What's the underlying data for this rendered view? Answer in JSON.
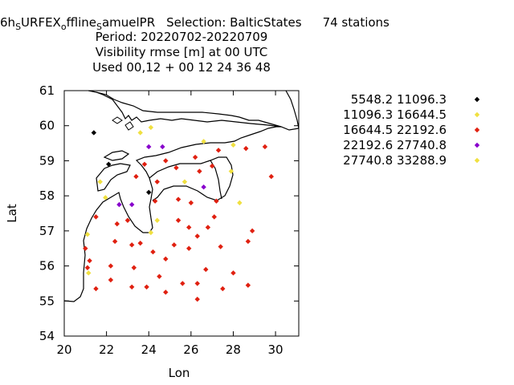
{
  "title": {
    "line1": {
      "prefix": "6h",
      "sub1": "S",
      "mid1": "URFEX",
      "sub2": "o",
      "mid2": "ffline",
      "sub3": "S",
      "mid3": "amuelPR",
      "selection": "Selection: BalticStates",
      "stations": "74 stations"
    },
    "line2": "Period: 20220702-20220709",
    "line3": "Visibility rmse [m] at  00 UTC",
    "line4": "Used  00,12  + 00 12 24 36 48"
  },
  "chart_data": {
    "type": "scatter",
    "xlabel": "Lon",
    "ylabel": "Lat",
    "xlim": [
      20,
      31.1
    ],
    "ylim": [
      54,
      61
    ],
    "xticks": [
      20,
      22,
      24,
      26,
      28,
      30
    ],
    "yticks": [
      54,
      55,
      56,
      57,
      58,
      59,
      60,
      61
    ],
    "legend_position": "right",
    "series": [
      {
        "name": "5548.2 11096.3",
        "color": "#000000",
        "points": [
          [
            21.4,
            59.8
          ],
          [
            22.1,
            58.9
          ],
          [
            24.0,
            58.1
          ]
        ]
      },
      {
        "name": "11096.3 16644.5",
        "color": "#f0e040",
        "points": [
          [
            23.6,
            59.8
          ],
          [
            24.1,
            59.95
          ],
          [
            26.6,
            59.55
          ],
          [
            28.0,
            59.45
          ],
          [
            21.7,
            58.4
          ],
          [
            21.95,
            57.95
          ],
          [
            25.7,
            58.4
          ],
          [
            27.9,
            58.7
          ],
          [
            24.4,
            57.3
          ],
          [
            28.3,
            57.8
          ],
          [
            21.1,
            56.9
          ],
          [
            24.1,
            56.95
          ],
          [
            21.15,
            55.8
          ]
        ]
      },
      {
        "name": "16644.5 22192.6",
        "color": "#e02010",
        "points": [
          [
            27.3,
            59.3
          ],
          [
            28.6,
            59.35
          ],
          [
            29.5,
            59.4
          ],
          [
            23.8,
            58.9
          ],
          [
            24.4,
            58.4
          ],
          [
            25.3,
            58.8
          ],
          [
            24.8,
            59.0
          ],
          [
            26.2,
            59.1
          ],
          [
            26.4,
            58.7
          ],
          [
            27.0,
            58.85
          ],
          [
            29.8,
            58.55
          ],
          [
            23.4,
            58.55
          ],
          [
            25.4,
            57.9
          ],
          [
            26.0,
            57.8
          ],
          [
            27.2,
            57.85
          ],
          [
            27.1,
            57.4
          ],
          [
            21.5,
            57.4
          ],
          [
            22.5,
            57.2
          ],
          [
            23.0,
            57.3
          ],
          [
            24.3,
            57.85
          ],
          [
            25.4,
            57.3
          ],
          [
            25.9,
            57.1
          ],
          [
            26.3,
            56.85
          ],
          [
            26.8,
            57.1
          ],
          [
            28.9,
            57.0
          ],
          [
            28.7,
            56.7
          ],
          [
            22.4,
            56.7
          ],
          [
            23.2,
            56.6
          ],
          [
            23.6,
            56.65
          ],
          [
            24.2,
            56.4
          ],
          [
            25.2,
            56.6
          ],
          [
            25.9,
            56.5
          ],
          [
            27.4,
            56.55
          ],
          [
            21.0,
            56.5
          ],
          [
            21.2,
            56.15
          ],
          [
            22.2,
            56.0
          ],
          [
            23.3,
            55.95
          ],
          [
            24.8,
            56.2
          ],
          [
            21.1,
            55.95
          ],
          [
            21.5,
            55.35
          ],
          [
            22.2,
            55.6
          ],
          [
            23.2,
            55.4
          ],
          [
            23.9,
            55.4
          ],
          [
            24.5,
            55.7
          ],
          [
            24.8,
            55.25
          ],
          [
            25.6,
            55.5
          ],
          [
            26.3,
            55.5
          ],
          [
            26.7,
            55.9
          ],
          [
            27.5,
            55.35
          ],
          [
            28.0,
            55.8
          ],
          [
            28.7,
            55.45
          ],
          [
            26.3,
            55.05
          ]
        ]
      },
      {
        "name": "22192.6 27740.8",
        "color": "#8800cc",
        "points": [
          [
            24.0,
            59.4
          ],
          [
            24.65,
            59.4
          ],
          [
            26.6,
            58.25
          ],
          [
            22.6,
            57.75
          ],
          [
            23.2,
            57.75
          ]
        ]
      },
      {
        "name": "27740.8 33288.9",
        "color": "#f0e040",
        "points": []
      }
    ]
  }
}
